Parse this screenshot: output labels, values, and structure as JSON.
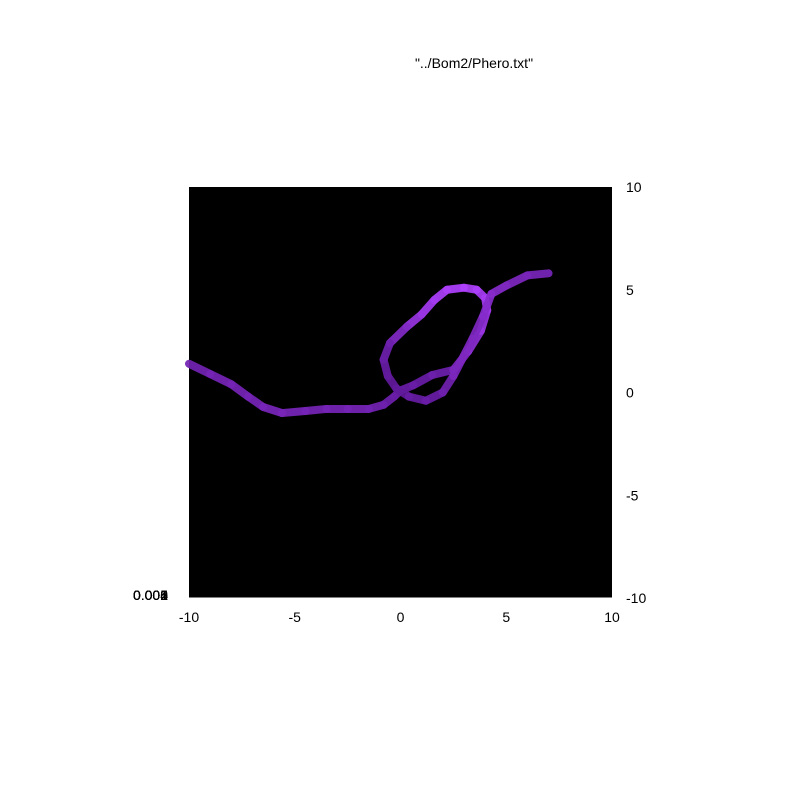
{
  "chart_data": {
    "type": "heatmap",
    "title": "\"../Bom2/Phero.txt\"",
    "xlabel": "",
    "ylabel": "",
    "xlim": [
      -10,
      10
    ],
    "ylim": [
      -10,
      10
    ],
    "x_ticks": [
      "-10",
      "-5",
      "0",
      "5",
      "10"
    ],
    "y_ticks": [
      "10",
      "5",
      "0",
      "-5",
      "-10"
    ],
    "colorbar_tick_labels_overlapping": [
      "0",
      "0.001",
      "0.002",
      "0.003",
      "0.004",
      "0.005"
    ],
    "background_color": "#000000",
    "trail_colors": [
      "#4a0e80",
      "#7a1bd0",
      "#9a2cf0",
      "#b040ff"
    ],
    "grid": false,
    "legend": "none",
    "trail": {
      "name": "",
      "points": [
        [
          -10,
          1.4
        ],
        [
          -9,
          0.9
        ],
        [
          -8,
          0.4
        ],
        [
          -7.2,
          -0.2
        ],
        [
          -6.5,
          -0.7
        ],
        [
          -5.6,
          -1.0
        ],
        [
          -4.5,
          -0.9
        ],
        [
          -3.5,
          -0.8
        ],
        [
          -2.5,
          -0.8
        ],
        [
          -1.5,
          -0.8
        ],
        [
          -0.8,
          -0.6
        ],
        [
          -0.3,
          -0.2
        ],
        [
          0.0,
          0.1
        ],
        [
          0.6,
          0.35
        ],
        [
          1.5,
          0.85
        ],
        [
          2.5,
          1.1
        ],
        [
          3.2,
          2.0
        ],
        [
          3.8,
          3.0
        ],
        [
          4.1,
          4.0
        ],
        [
          4.0,
          4.6
        ],
        [
          3.6,
          5.0
        ],
        [
          3.0,
          5.1
        ],
        [
          2.2,
          5.0
        ],
        [
          1.6,
          4.5
        ],
        [
          1.0,
          3.8
        ],
        [
          0.3,
          3.2
        ],
        [
          -0.5,
          2.4
        ],
        [
          -0.8,
          1.6
        ],
        [
          -0.6,
          0.8
        ],
        [
          -0.2,
          0.2
        ],
        [
          0.4,
          -0.2
        ],
        [
          1.2,
          -0.4
        ],
        [
          2.0,
          0.0
        ],
        [
          2.5,
          0.8
        ],
        [
          2.9,
          1.6
        ],
        [
          3.4,
          2.6
        ],
        [
          3.9,
          3.7
        ],
        [
          4.3,
          4.8
        ],
        [
          5.0,
          5.2
        ],
        [
          6.0,
          5.7
        ],
        [
          7.0,
          5.8
        ]
      ],
      "intensity": [
        0.45,
        0.5,
        0.5,
        0.5,
        0.5,
        0.55,
        0.5,
        0.5,
        0.5,
        0.5,
        0.45,
        0.4,
        0.4,
        0.4,
        0.4,
        0.45,
        0.65,
        0.75,
        0.85,
        0.9,
        0.95,
        1.0,
        1.0,
        0.95,
        0.85,
        0.75,
        0.45,
        0.4,
        0.35,
        0.3,
        0.35,
        0.4,
        0.4,
        0.5,
        0.6,
        0.55,
        0.6,
        0.7,
        0.6,
        0.55,
        0.5
      ]
    }
  }
}
